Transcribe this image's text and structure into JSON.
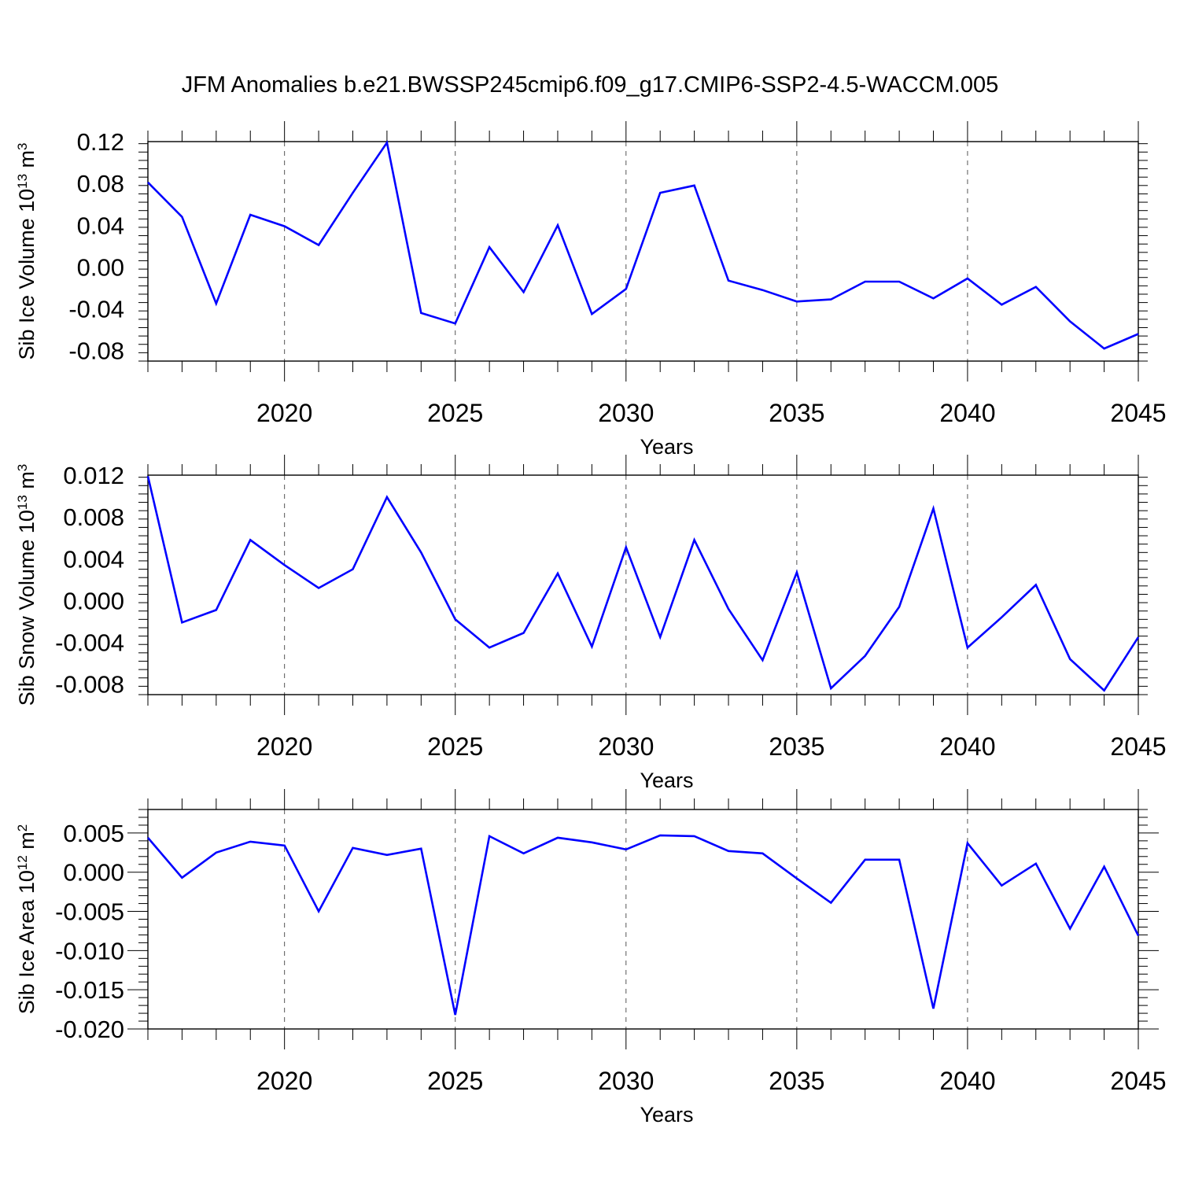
{
  "figure": {
    "title": "JFM Anomalies b.e21.BWSSP245cmip6.f09_g17.CMIP6-SSP2-4.5-WACCM.005"
  },
  "chart_data": [
    {
      "type": "line",
      "ylabel": {
        "base": "Sib Ice Volume 10",
        "exp": "13",
        "unit": " m",
        "unit_exp": "3"
      },
      "xlabel": "Years",
      "xlim": [
        2016,
        2045
      ],
      "ylim": [
        -0.09,
        0.12
      ],
      "xticks": [
        2020,
        2025,
        2030,
        2035,
        2040,
        2045
      ],
      "xtick_labels": [
        "2020",
        "2025",
        "2030",
        "2035",
        "2040",
        "2045"
      ],
      "yticks": [
        -0.08,
        -0.04,
        0.0,
        0.04,
        0.08,
        0.12
      ],
      "ytick_labels": [
        "-0.08",
        "-0.04",
        "0.00",
        "0.04",
        "0.08",
        "0.12"
      ],
      "series": [
        {
          "color": "#0000ff",
          "x": [
            2016,
            2017,
            2018,
            2019,
            2020,
            2021,
            2022,
            2023,
            2024,
            2025,
            2026,
            2027,
            2028,
            2029,
            2030,
            2031,
            2032,
            2033,
            2034,
            2035,
            2036,
            2037,
            2038,
            2039,
            2040,
            2041,
            2042,
            2043,
            2044,
            2045
          ],
          "values": [
            0.081,
            0.048,
            -0.035,
            0.05,
            0.039,
            0.021,
            0.071,
            0.119,
            -0.044,
            -0.054,
            0.019,
            -0.024,
            0.04,
            -0.045,
            -0.021,
            0.071,
            0.078,
            -0.013,
            -0.022,
            -0.033,
            -0.031,
            -0.014,
            -0.014,
            -0.03,
            -0.011,
            -0.036,
            -0.019,
            -0.052,
            -0.078,
            -0.064
          ]
        }
      ]
    },
    {
      "type": "line",
      "ylabel": {
        "base": "Sib Snow Volume 10",
        "exp": "13",
        "unit": " m",
        "unit_exp": "3"
      },
      "xlabel": "Years",
      "xlim": [
        2016,
        2045
      ],
      "ylim": [
        -0.009,
        0.012
      ],
      "xticks": [
        2020,
        2025,
        2030,
        2035,
        2040,
        2045
      ],
      "xtick_labels": [
        "2020",
        "2025",
        "2030",
        "2035",
        "2040",
        "2045"
      ],
      "yticks": [
        -0.008,
        -0.004,
        0.0,
        0.004,
        0.008,
        0.012
      ],
      "ytick_labels": [
        "-0.008",
        "-0.004",
        "0.000",
        "0.004",
        "0.008",
        "0.012"
      ],
      "series": [
        {
          "color": "#0000ff",
          "x": [
            2016,
            2017,
            2018,
            2019,
            2020,
            2021,
            2022,
            2023,
            2024,
            2025,
            2026,
            2027,
            2028,
            2029,
            2030,
            2031,
            2032,
            2033,
            2034,
            2035,
            2036,
            2037,
            2038,
            2039,
            2040,
            2041,
            2042,
            2043,
            2044,
            2045
          ],
          "values": [
            0.0119,
            -0.0021,
            -0.0009,
            0.0058,
            0.0034,
            0.0012,
            0.003,
            0.0099,
            0.0046,
            -0.0018,
            -0.0045,
            -0.0031,
            0.0026,
            -0.0044,
            0.0051,
            -0.0035,
            0.0058,
            -0.0008,
            -0.0057,
            0.0027,
            -0.0084,
            -0.0053,
            -0.0006,
            0.0088,
            -0.0045,
            -0.0016,
            0.0015,
            -0.0056,
            -0.0086,
            -0.0035
          ]
        }
      ]
    },
    {
      "type": "line",
      "ylabel": {
        "base": "Sib Ice Area 10",
        "exp": "12",
        "unit": " m",
        "unit_exp": "2"
      },
      "xlabel": "Years",
      "xlim": [
        2016,
        2045
      ],
      "ylim": [
        -0.02,
        0.008
      ],
      "xticks": [
        2020,
        2025,
        2030,
        2035,
        2040,
        2045
      ],
      "xtick_labels": [
        "2020",
        "2025",
        "2030",
        "2035",
        "2040",
        "2045"
      ],
      "yticks": [
        -0.02,
        -0.015,
        -0.01,
        -0.005,
        0.0,
        0.005
      ],
      "ytick_labels": [
        "-0.020",
        "-0.015",
        "-0.010",
        "-0.005",
        "0.000",
        "0.005"
      ],
      "series": [
        {
          "color": "#0000ff",
          "x": [
            2016,
            2017,
            2018,
            2019,
            2020,
            2021,
            2022,
            2023,
            2024,
            2025,
            2026,
            2027,
            2028,
            2029,
            2030,
            2031,
            2032,
            2033,
            2034,
            2035,
            2036,
            2037,
            2038,
            2039,
            2040,
            2041,
            2042,
            2043,
            2044,
            2045
          ],
          "values": [
            0.0044,
            -0.0007,
            0.0025,
            0.0039,
            0.0034,
            -0.005,
            0.0031,
            0.0022,
            0.003,
            -0.0182,
            0.0046,
            0.0024,
            0.0044,
            0.0038,
            0.0029,
            0.0047,
            0.0046,
            0.0027,
            0.0024,
            -0.0008,
            -0.0039,
            0.0016,
            0.0016,
            -0.0174,
            0.0037,
            -0.0017,
            0.0011,
            -0.0072,
            0.0007,
            -0.0081
          ]
        }
      ]
    }
  ]
}
